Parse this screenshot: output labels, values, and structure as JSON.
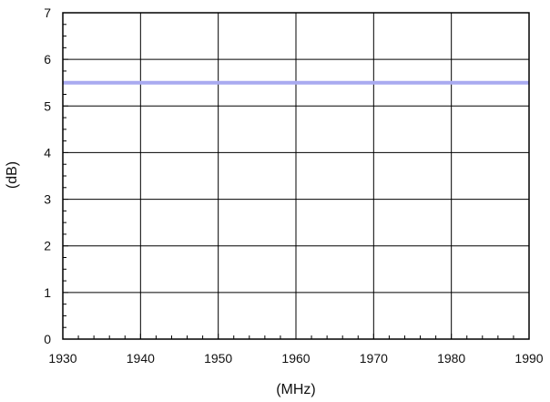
{
  "chart_data": {
    "type": "line",
    "xlabel": "(MHz)",
    "ylabel": "(dB)",
    "xlim": [
      1930,
      1990
    ],
    "ylim": [
      0,
      7
    ],
    "x_ticks": [
      1930,
      1940,
      1950,
      1960,
      1970,
      1980,
      1990
    ],
    "y_ticks": [
      0,
      1,
      2,
      3,
      4,
      5,
      6,
      7
    ],
    "grid": true,
    "series": [
      {
        "color": "#a9aaf0",
        "x": [
          1930,
          1990
        ],
        "y": [
          5.5,
          5.5
        ]
      }
    ]
  }
}
